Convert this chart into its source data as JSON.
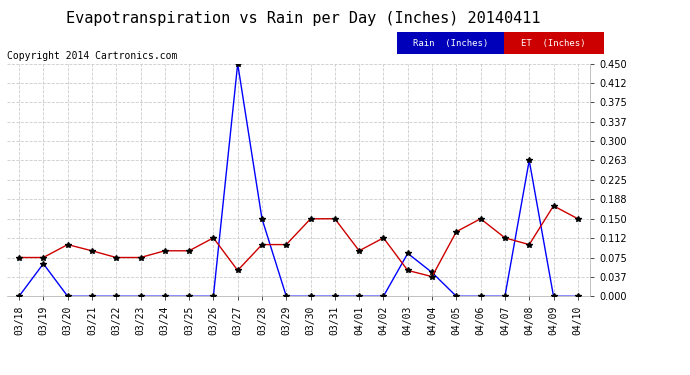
{
  "title": "Evapotranspiration vs Rain per Day (Inches) 20140411",
  "copyright": "Copyright 2014 Cartronics.com",
  "legend_rain": "Rain  (Inches)",
  "legend_et": "ET  (Inches)",
  "dates": [
    "03/18",
    "03/19",
    "03/20",
    "03/21",
    "03/22",
    "03/23",
    "03/24",
    "03/25",
    "03/26",
    "03/27",
    "03/28",
    "03/29",
    "03/30",
    "03/31",
    "04/01",
    "04/02",
    "04/03",
    "04/04",
    "04/05",
    "04/06",
    "04/07",
    "04/08",
    "04/09",
    "04/10"
  ],
  "rain": [
    0.0,
    0.063,
    0.0,
    0.0,
    0.0,
    0.0,
    0.0,
    0.0,
    0.0,
    0.45,
    0.15,
    0.0,
    0.0,
    0.0,
    0.0,
    0.0,
    0.083,
    0.046,
    0.0,
    0.0,
    0.0,
    0.263,
    0.0,
    0.0
  ],
  "et": [
    0.075,
    0.075,
    0.1,
    0.088,
    0.075,
    0.075,
    0.088,
    0.088,
    0.113,
    0.05,
    0.1,
    0.1,
    0.15,
    0.15,
    0.088,
    0.113,
    0.05,
    0.038,
    0.125,
    0.15,
    0.113,
    0.1,
    0.175,
    0.15
  ],
  "ylim_min": 0.0,
  "ylim_max": 0.45,
  "yticks": [
    0.0,
    0.037,
    0.075,
    0.112,
    0.15,
    0.188,
    0.225,
    0.263,
    0.3,
    0.337,
    0.375,
    0.412,
    0.45
  ],
  "rain_color": "#0000ff",
  "et_color": "#cc0000",
  "marker_color": "#000000",
  "grid_color": "#cccccc",
  "bg_color": "#ffffff",
  "title_fontsize": 11,
  "tick_fontsize": 7,
  "copyright_fontsize": 7,
  "legend_bg_rain": "#0000bb",
  "legend_bg_et": "#cc0000",
  "legend_text_color": "#ffffff"
}
